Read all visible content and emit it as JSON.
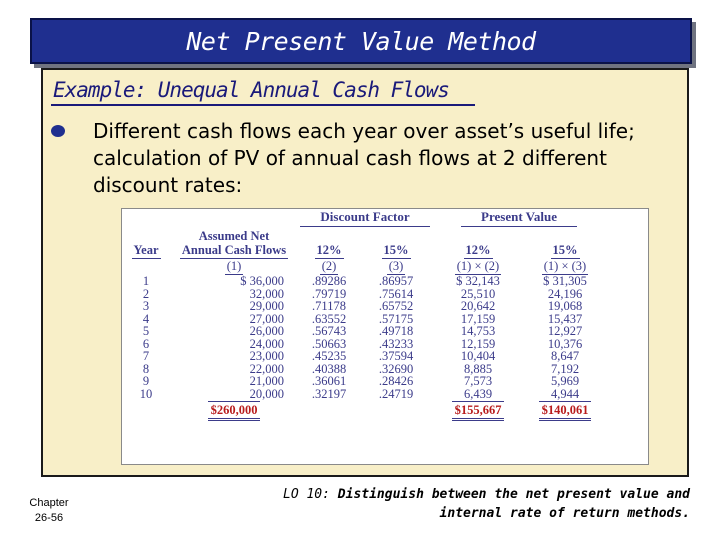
{
  "slide": {
    "title": "Net Present Value Method",
    "subtitle": "Example: Unequal Annual Cash Flows",
    "bullet": "Different cash flows each year over asset’s useful life; calculation of PV of annual cash flows at 2 different discount rates:"
  },
  "table": {
    "group_headers": {
      "discount_factor": "Discount Factor",
      "present_value": "Present Value"
    },
    "headers": {
      "year": "Year",
      "cash_flows_line1": "Assumed Net",
      "cash_flows_line2": "Annual Cash Flows",
      "df12": "12%",
      "df15": "15%",
      "pv12": "12%",
      "pv15": "15%"
    },
    "column_numbers": {
      "c1": "(1)",
      "c2": "(2)",
      "c3": "(3)",
      "c4": "(1) × (2)",
      "c5": "(1) × (3)"
    },
    "rows": [
      {
        "year": "1",
        "cash_flow": "$ 36,000",
        "df12": ".89286",
        "df15": ".86957",
        "pv12": "$ 32,143",
        "pv15": "$ 31,305"
      },
      {
        "year": "2",
        "cash_flow": "32,000",
        "df12": ".79719",
        "df15": ".75614",
        "pv12": "25,510",
        "pv15": "24,196"
      },
      {
        "year": "3",
        "cash_flow": "29,000",
        "df12": ".71178",
        "df15": ".65752",
        "pv12": "20,642",
        "pv15": "19,068"
      },
      {
        "year": "4",
        "cash_flow": "27,000",
        "df12": ".63552",
        "df15": ".57175",
        "pv12": "17,159",
        "pv15": "15,437"
      },
      {
        "year": "5",
        "cash_flow": "26,000",
        "df12": ".56743",
        "df15": ".49718",
        "pv12": "14,753",
        "pv15": "12,927"
      },
      {
        "year": "6",
        "cash_flow": "24,000",
        "df12": ".50663",
        "df15": ".43233",
        "pv12": "12,159",
        "pv15": "10,376"
      },
      {
        "year": "7",
        "cash_flow": "23,000",
        "df12": ".45235",
        "df15": ".37594",
        "pv12": "10,404",
        "pv15": "8,647"
      },
      {
        "year": "8",
        "cash_flow": "22,000",
        "df12": ".40388",
        "df15": ".32690",
        "pv12": "8,885",
        "pv15": "7,192"
      },
      {
        "year": "9",
        "cash_flow": "21,000",
        "df12": ".36061",
        "df15": ".28426",
        "pv12": "7,573",
        "pv15": "5,969"
      },
      {
        "year": "10",
        "cash_flow": "20,000",
        "df12": ".32197",
        "df15": ".24719",
        "pv12": "6,439",
        "pv15": "4,944"
      }
    ],
    "totals": {
      "cash_flow": "$260,000",
      "pv12": "$155,667",
      "pv15": "$140,061"
    }
  },
  "footer": {
    "chapter_line1": "Chapter",
    "chapter_line2": "26-56",
    "lo_label": "LO 10:",
    "lo_text": "Distinguish between the net present value and internal rate of return methods."
  },
  "colors": {
    "title_bar": "#1f2f8f",
    "content_bg": "#f8efc8",
    "table_text": "#3b3b8a",
    "totals_text": "#b81c1c"
  }
}
